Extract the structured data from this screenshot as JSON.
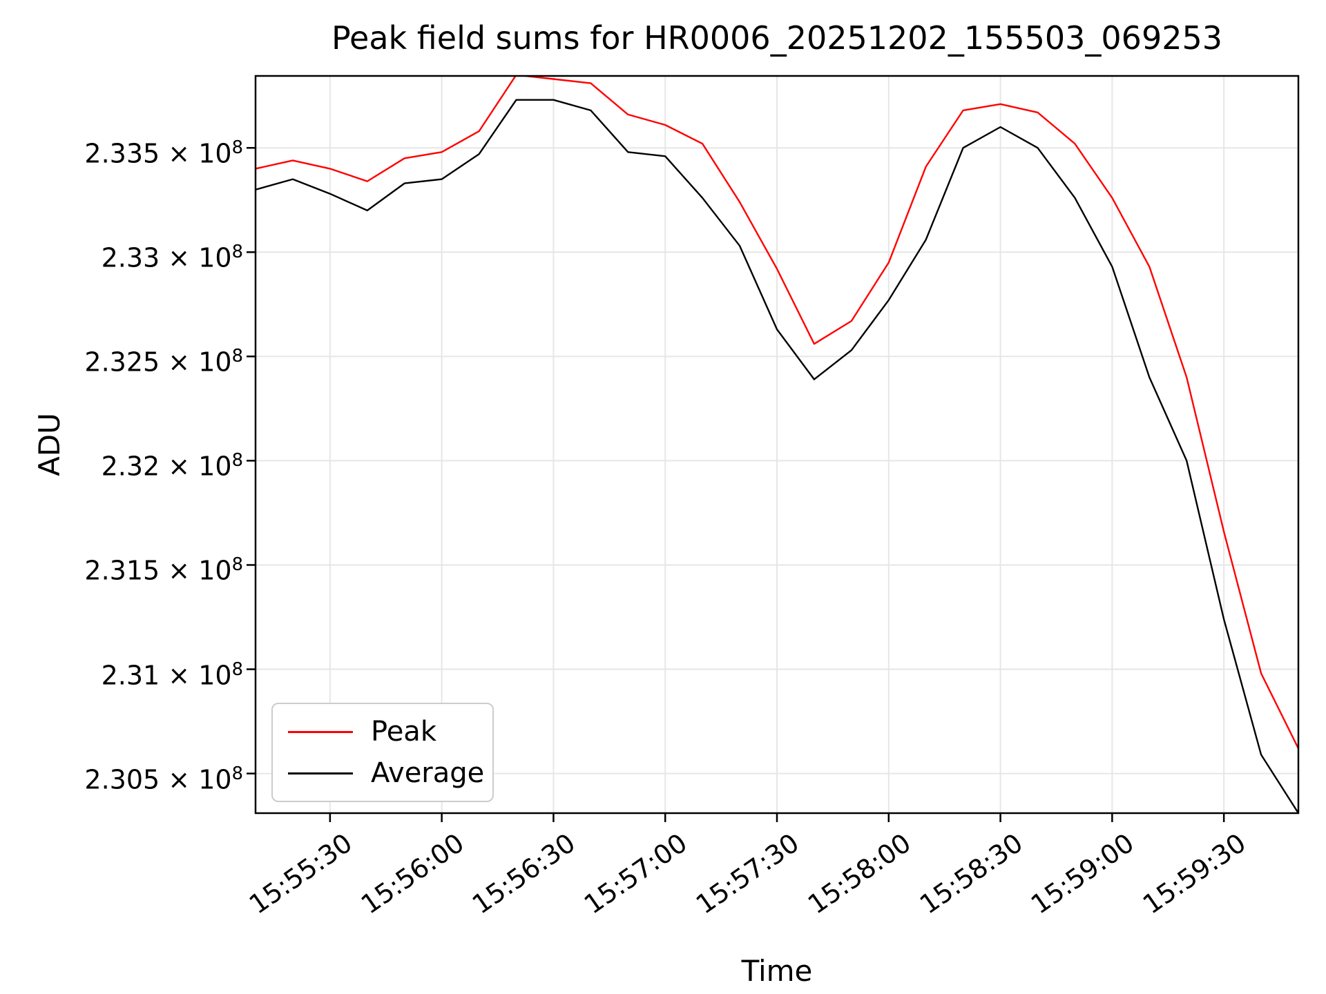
{
  "figure": {
    "title": "Peak field sums for HR0006_20251202_155503_069253",
    "xlabel": "Time",
    "ylabel": "ADU",
    "background_color": "#ffffff"
  },
  "legend": {
    "position": "lower left",
    "entries": [
      {
        "label": "Peak",
        "color": "#ff0000"
      },
      {
        "label": "Average",
        "color": "#000000"
      }
    ]
  },
  "chart_data": {
    "type": "line",
    "title": "Peak field sums for HR0006_20251202_155503_069253",
    "xlabel": "Time",
    "ylabel": "ADU",
    "grid": true,
    "grid_color": "#e6e6e6",
    "spine_color": "#000000",
    "x": [
      "15:55:10",
      "15:55:20",
      "15:55:30",
      "15:55:40",
      "15:55:50",
      "15:56:00",
      "15:56:10",
      "15:56:20",
      "15:56:30",
      "15:56:40",
      "15:56:50",
      "15:57:00",
      "15:57:10",
      "15:57:20",
      "15:57:30",
      "15:57:40",
      "15:57:50",
      "15:58:00",
      "15:58:10",
      "15:58:20",
      "15:58:30",
      "15:58:40",
      "15:58:50",
      "15:59:00",
      "15:59:10",
      "15:59:20",
      "15:59:30",
      "15:59:40",
      "15:59:50"
    ],
    "x_tick_labels": [
      "15:55:30",
      "15:56:00",
      "15:56:30",
      "15:57:00",
      "15:57:30",
      "15:58:00",
      "15:58:30",
      "15:59:00",
      "15:59:30"
    ],
    "y_ticks": [
      230500000,
      231000000,
      231500000,
      232000000,
      232500000,
      233000000,
      233500000
    ],
    "y_tick_exponent": 8,
    "ylim": [
      230310000,
      233845000
    ],
    "series": [
      {
        "name": "Peak",
        "color": "#ff0000",
        "values": [
          233400000,
          233440000,
          233400000,
          233340000,
          233450000,
          233480000,
          233580000,
          233850000,
          233830000,
          233810000,
          233660000,
          233610000,
          233520000,
          233240000,
          232920000,
          232560000,
          232670000,
          232950000,
          233410000,
          233680000,
          233710000,
          233670000,
          233520000,
          233260000,
          232930000,
          232400000,
          231660000,
          230980000,
          230620000
        ]
      },
      {
        "name": "Average",
        "color": "#000000",
        "values": [
          233300000,
          233350000,
          233280000,
          233200000,
          233330000,
          233350000,
          233470000,
          233730000,
          233730000,
          233680000,
          233480000,
          233460000,
          233260000,
          233030000,
          232630000,
          232390000,
          232530000,
          232770000,
          233060000,
          233500000,
          233600000,
          233500000,
          233260000,
          232930000,
          232400000,
          232000000,
          231240000,
          230590000,
          230310000
        ]
      }
    ]
  }
}
